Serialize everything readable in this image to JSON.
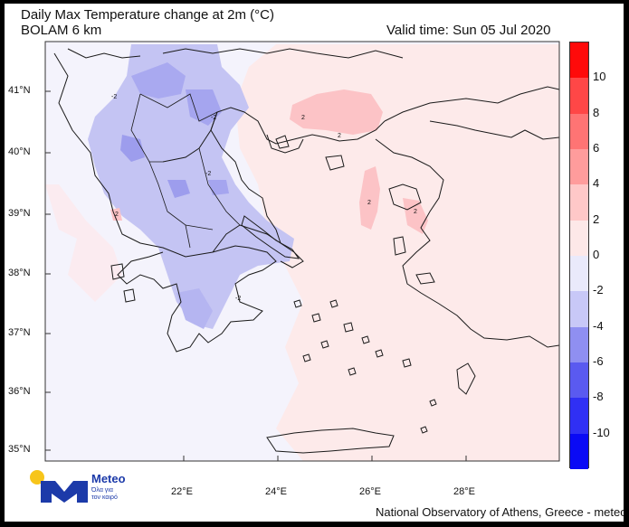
{
  "title": "Daily Max Temperature change at 2m (°C)",
  "subtitle": "BOLAM 6 km",
  "valid_time": "Valid time: Sun 05 Jul 2020",
  "lat_labels": [
    "41°N",
    "40°N",
    "39°N",
    "38°N",
    "37°N",
    "36°N",
    "35°N"
  ],
  "lon_labels": [
    "22°E",
    "24°E",
    "26°E",
    "28°E"
  ],
  "colorbar": {
    "labels": [
      "10",
      "8",
      "6",
      "4",
      "2",
      "0",
      "-2",
      "-4",
      "-6",
      "-8",
      "-10"
    ],
    "colors": [
      "#ff0a0a",
      "#ff4747",
      "#ff7474",
      "#ff9c9c",
      "#ffc8c8",
      "#fde8e8",
      "#eaeafb",
      "#c8c8f7",
      "#8f8ff1",
      "#5a5af0",
      "#3030f4",
      "#0a0af5"
    ]
  },
  "logo": {
    "name": "Meteo",
    "tagline_1": "Όλα για",
    "tagline_2": "τον καιρό",
    "blue": "#1c3aa9",
    "yellow": "#f7c51b"
  },
  "credit": "National Observatory of Athens, Greece - meteo.gr",
  "contour_labels": [
    "-2",
    "-2",
    "-2",
    "-2",
    "2",
    "2",
    "2",
    "2",
    "2"
  ]
}
